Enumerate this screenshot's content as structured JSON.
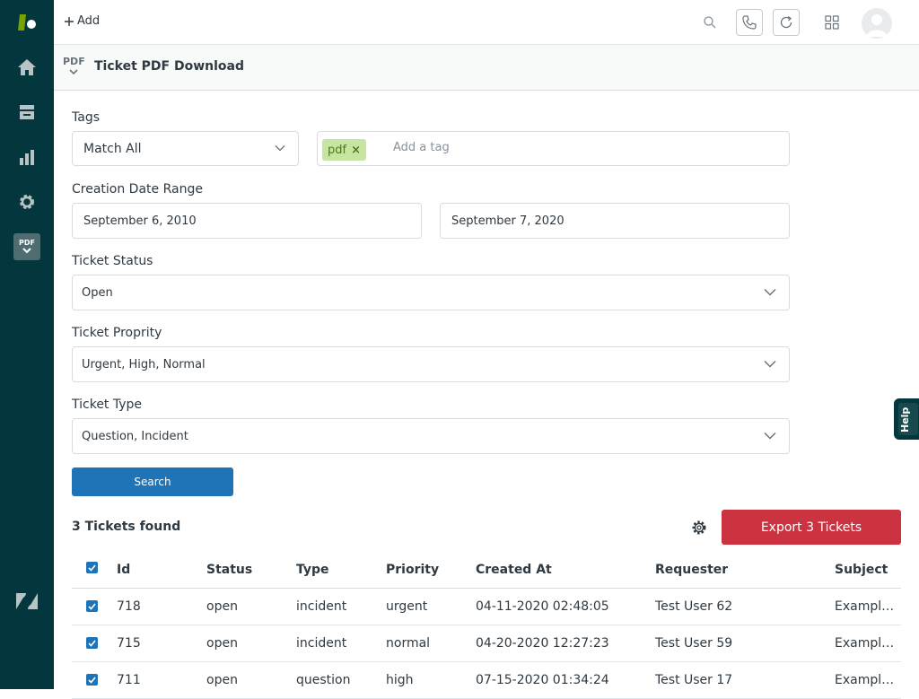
{
  "topbar": {
    "add_label": "Add"
  },
  "app": {
    "logo_text": "PDF",
    "title": "Ticket PDF Download"
  },
  "form": {
    "tags": {
      "label": "Tags",
      "match_value": "Match All",
      "tag": "pdf",
      "tag_remove": "×",
      "input_placeholder": "Add a tag"
    },
    "date_range": {
      "label": "Creation Date Range",
      "start": "September 6, 2010",
      "end": "September 7, 2020"
    },
    "status": {
      "label": "Ticket Status",
      "value": "Open"
    },
    "priority": {
      "label": "Ticket Proprity",
      "value": "Urgent, High, Normal"
    },
    "type": {
      "label": "Ticket Type",
      "value": "Question, Incident"
    },
    "search_label": "Search"
  },
  "results": {
    "count_text": "3 Tickets found",
    "export_label": "Export 3 Tickets",
    "columns": [
      "Id",
      "Status",
      "Type",
      "Priority",
      "Created At",
      "Requester",
      "Subject"
    ],
    "rows": [
      {
        "id": "718",
        "status": "open",
        "type": "incident",
        "priority": "urgent",
        "created": "04-11-2020 02:48:05",
        "requester": "Test User 62",
        "subject": "Exampl…"
      },
      {
        "id": "715",
        "status": "open",
        "type": "incident",
        "priority": "normal",
        "created": "04-20-2020 12:27:23",
        "requester": "Test User 59",
        "subject": "Exampl…"
      },
      {
        "id": "711",
        "status": "open",
        "type": "question",
        "priority": "high",
        "created": "07-15-2020 01:34:24",
        "requester": "Test User 17",
        "subject": "Exampl…"
      }
    ]
  },
  "help_label": "Help",
  "colors": {
    "rail": "#03363d",
    "primary": "#1f73b7",
    "danger": "#cc3340",
    "tag_bg": "#c7e5a0"
  }
}
